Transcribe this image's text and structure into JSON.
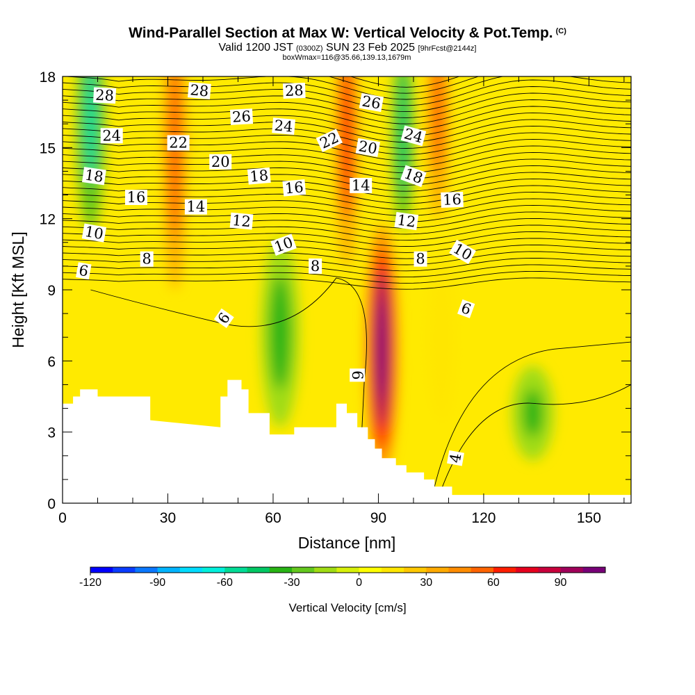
{
  "header": {
    "title": "Wind-Parallel Section at Max W: Vertical Velocity & Pot.Temp.",
    "title_tag": "(C)",
    "valid_prefix": "Valid 1200 JST",
    "valid_utc": "(0300Z)",
    "valid_date": "SUN 23 Feb 2025",
    "forecast_info": "[9hrFcst@2144z]",
    "box_info": "boxWmax=116@35.66,139.13,1679m"
  },
  "chart_data": {
    "type": "heatmap",
    "title": "Wind-Parallel Section at Max W: Vertical Velocity & Pot.Temp.",
    "xlabel": "Distance [nm]",
    "ylabel": "Height [Kft MSL]",
    "xlim": [
      0,
      162
    ],
    "ylim": [
      0,
      18
    ],
    "x_ticks": [
      0,
      30,
      60,
      90,
      120,
      150
    ],
    "y_ticks": [
      0,
      3,
      6,
      9,
      12,
      15,
      18
    ],
    "colorbar": {
      "label": "Vertical Velocity [cm/s]",
      "range": [
        -120,
        110
      ],
      "ticks": [
        -120,
        -90,
        -60,
        -30,
        0,
        30,
        60,
        90
      ],
      "colors": [
        "#0000ff",
        "#0a3cff",
        "#0a78ff",
        "#00b4ff",
        "#00dcff",
        "#00f0dc",
        "#00dc96",
        "#00c864",
        "#28b414",
        "#64c81e",
        "#a0dc14",
        "#d7f00a",
        "#ffff00",
        "#ffe600",
        "#ffc800",
        "#ffaa00",
        "#ff8c00",
        "#ff6400",
        "#ff1e00",
        "#e6001e",
        "#c8003c",
        "#a0005a",
        "#780078"
      ]
    },
    "ground_profile": {
      "x": [
        0,
        3,
        3,
        5,
        5,
        10,
        10,
        25,
        25,
        45,
        45,
        47,
        47,
        51,
        51,
        53,
        53,
        59,
        59,
        66,
        66,
        78,
        78,
        81,
        81,
        84,
        84,
        87,
        87,
        89,
        89,
        91,
        91,
        95,
        95,
        98,
        98,
        103,
        103,
        106,
        106,
        111,
        111,
        162
      ],
      "y": [
        4.2,
        4.2,
        4.5,
        4.5,
        4.8,
        4.8,
        4.5,
        4.5,
        3.5,
        3.2,
        4.5,
        4.5,
        5.2,
        5.2,
        4.8,
        4.8,
        3.8,
        3.8,
        2.9,
        2.9,
        3.2,
        3.2,
        4.2,
        4.2,
        3.8,
        3.8,
        3.2,
        3.2,
        2.7,
        2.7,
        2.3,
        2.3,
        1.9,
        1.9,
        1.6,
        1.6,
        1.3,
        1.3,
        1.0,
        1.0,
        0.7,
        0.7,
        0.35,
        0.35
      ]
    },
    "vertical_velocity_features": [
      {
        "x": 91,
        "y": 6.5,
        "value": 116
      },
      {
        "x": 32,
        "y": 15,
        "value": 55
      },
      {
        "x": 81,
        "y": 15.5,
        "value": 60
      },
      {
        "x": 107,
        "y": 16.5,
        "value": 55
      },
      {
        "x": 62,
        "y": 7.2,
        "value": -40
      },
      {
        "x": 8,
        "y": 16,
        "value": -75
      },
      {
        "x": 97,
        "y": 15.5,
        "value": -45
      },
      {
        "x": 134,
        "y": 3.8,
        "value": -35
      },
      {
        "x": 108,
        "y": 7,
        "value": 30
      }
    ],
    "theta_contour_labels": [
      {
        "text": "28",
        "x": 12,
        "y": 17.2,
        "rot": 3
      },
      {
        "text": "28",
        "x": 39,
        "y": 17.4,
        "rot": 5
      },
      {
        "text": "28",
        "x": 66,
        "y": 17.4,
        "rot": -2
      },
      {
        "text": "26",
        "x": 51,
        "y": 16.3,
        "rot": -3
      },
      {
        "text": "26",
        "x": 88,
        "y": 16.9,
        "rot": 10
      },
      {
        "text": "24",
        "x": 14,
        "y": 15.5,
        "rot": 0
      },
      {
        "text": "24",
        "x": 63,
        "y": 15.9,
        "rot": 5
      },
      {
        "text": "24",
        "x": 100,
        "y": 15.5,
        "rot": 15
      },
      {
        "text": "22",
        "x": 33,
        "y": 15.2,
        "rot": 0
      },
      {
        "text": "22",
        "x": 76,
        "y": 15.3,
        "rot": -25
      },
      {
        "text": "20",
        "x": 45,
        "y": 14.4,
        "rot": 0
      },
      {
        "text": "20",
        "x": 87,
        "y": 15,
        "rot": 10
      },
      {
        "text": "18",
        "x": 9,
        "y": 13.8,
        "rot": 8
      },
      {
        "text": "18",
        "x": 56,
        "y": 13.8,
        "rot": -5
      },
      {
        "text": "18",
        "x": 100,
        "y": 13.8,
        "rot": 20
      },
      {
        "text": "16",
        "x": 21,
        "y": 12.9,
        "rot": 0
      },
      {
        "text": "16",
        "x": 66,
        "y": 13.3,
        "rot": -5
      },
      {
        "text": "16",
        "x": 111,
        "y": 12.8,
        "rot": -2
      },
      {
        "text": "14",
        "x": 38,
        "y": 12.5,
        "rot": 0
      },
      {
        "text": "14",
        "x": 85,
        "y": 13.4,
        "rot": 0
      },
      {
        "text": "12",
        "x": 51,
        "y": 11.9,
        "rot": 5
      },
      {
        "text": "12",
        "x": 98,
        "y": 11.9,
        "rot": 8
      },
      {
        "text": "10",
        "x": 9,
        "y": 11.4,
        "rot": 10
      },
      {
        "text": "10",
        "x": 63,
        "y": 10.9,
        "rot": -20
      },
      {
        "text": "10",
        "x": 114,
        "y": 10.6,
        "rot": 30
      },
      {
        "text": "8",
        "x": 24,
        "y": 10.3,
        "rot": 0
      },
      {
        "text": "8",
        "x": 72,
        "y": 10.0,
        "rot": 0
      },
      {
        "text": "8",
        "x": 102,
        "y": 10.3,
        "rot": 0
      },
      {
        "text": "6",
        "x": 6,
        "y": 9.8,
        "rot": 10
      },
      {
        "text": "6",
        "x": 46,
        "y": 7.8,
        "rot": -55
      },
      {
        "text": "6",
        "x": 115,
        "y": 8.2,
        "rot": 20
      },
      {
        "text": "6",
        "x": 84,
        "y": 5.4,
        "rot": 90
      },
      {
        "text": "4",
        "x": 112,
        "y": 1.9,
        "rot": -80
      }
    ]
  }
}
